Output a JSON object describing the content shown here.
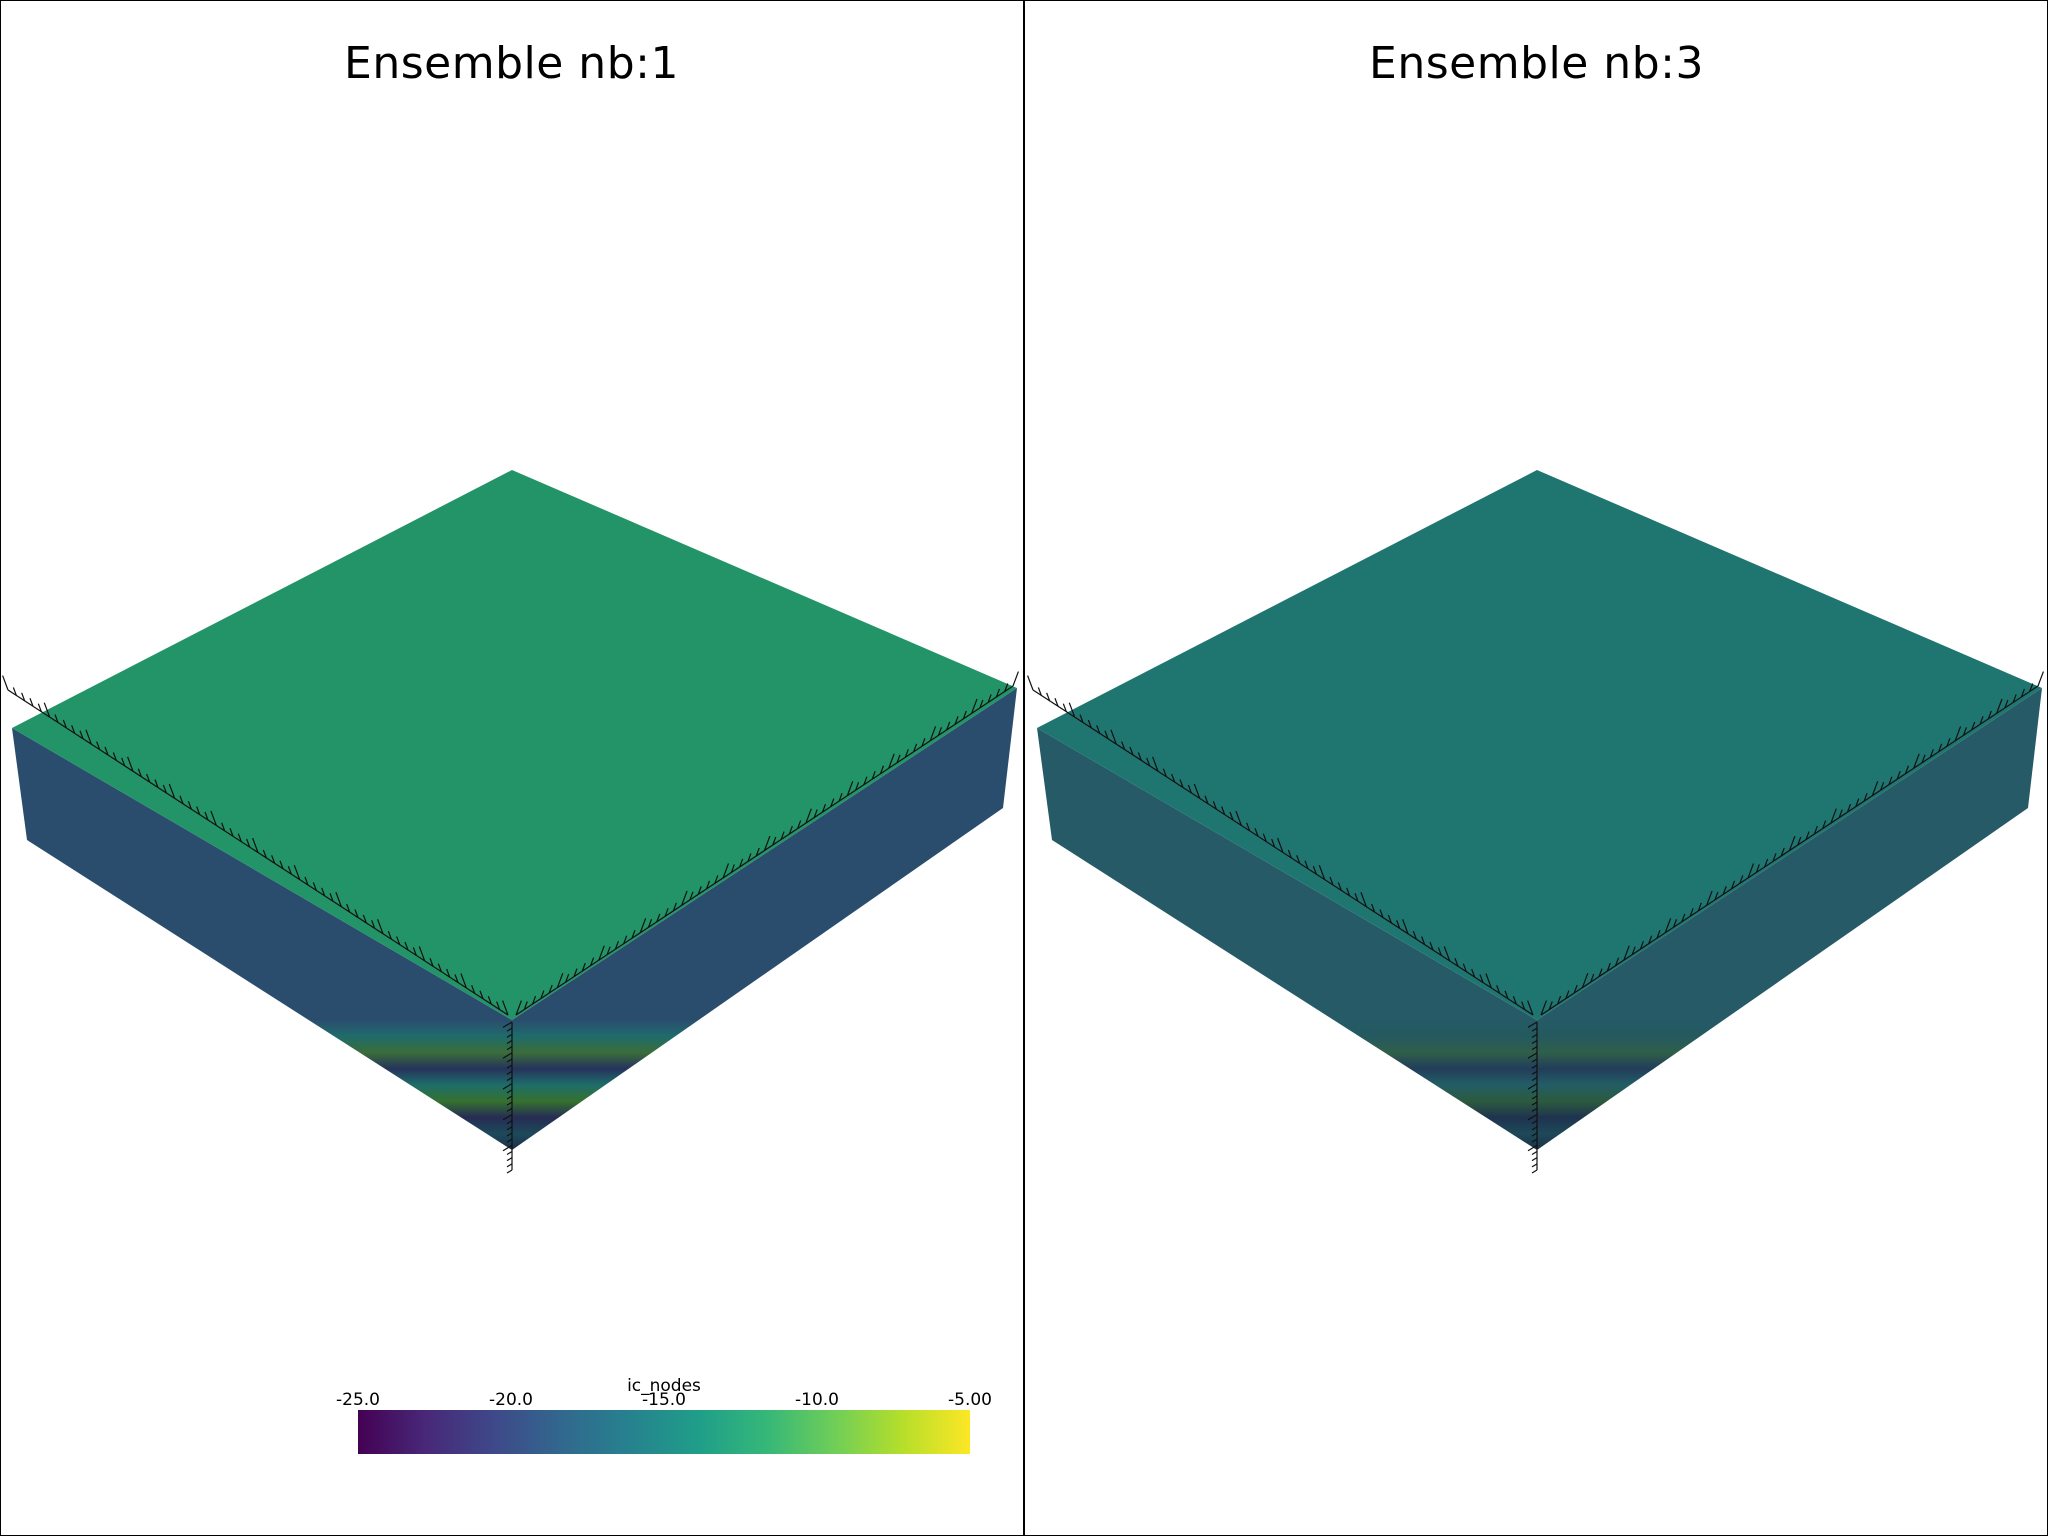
{
  "panels": [
    {
      "title": "Ensemble nb:1",
      "top_color": "#229468",
      "stripe_colors": [
        "#2a4d6e",
        "#1f6b6b",
        "#3a6d3a",
        "#26335c",
        "#1e6e6a",
        "#35712f",
        "#262c54",
        "#1d4a5a",
        "#1c2e4a"
      ]
    },
    {
      "title": "Ensemble nb:3",
      "top_color": "#1f7671",
      "stripe_colors": [
        "#255a66",
        "#24595f",
        "#2f5f4a",
        "#223d5a",
        "#235e65",
        "#2c5a3e",
        "#1f3350",
        "#1e4958",
        "#1b3346"
      ]
    }
  ],
  "colorbar": {
    "title": "ic_nodes",
    "ticks": [
      "-25.0",
      "-20.0",
      "-15.0",
      "-10.0",
      "-5.00"
    ],
    "range": [
      -25.0,
      -5.0
    ],
    "colormap": "viridis"
  }
}
